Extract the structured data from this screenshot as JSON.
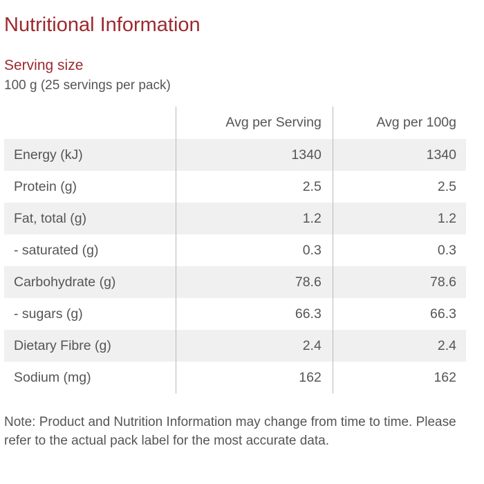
{
  "title": "Nutritional Information",
  "serving": {
    "heading": "Serving size",
    "value": "100 g (25 servings per pack)"
  },
  "table": {
    "headers": [
      "",
      "Avg per Serving",
      "Avg per 100g"
    ],
    "rows": [
      {
        "nutrient": "Energy (kJ)",
        "per_serving": "1340",
        "per_100g": "1340"
      },
      {
        "nutrient": "Protein (g)",
        "per_serving": "2.5",
        "per_100g": "2.5"
      },
      {
        "nutrient": "Fat, total (g)",
        "per_serving": "1.2",
        "per_100g": "1.2"
      },
      {
        "nutrient": "- saturated (g)",
        "per_serving": "0.3",
        "per_100g": "0.3"
      },
      {
        "nutrient": "Carbohydrate (g)",
        "per_serving": "78.6",
        "per_100g": "78.6"
      },
      {
        "nutrient": "- sugars (g)",
        "per_serving": "66.3",
        "per_100g": "66.3"
      },
      {
        "nutrient": "Dietary Fibre (g)",
        "per_serving": "2.4",
        "per_100g": "2.4"
      },
      {
        "nutrient": "Sodium (mg)",
        "per_serving": "162",
        "per_100g": "162"
      }
    ]
  },
  "note": "Note: Product and Nutrition Information may change from time to time. Please refer to the actual pack label for the most accurate data.",
  "colors": {
    "heading": "#9b2a2f",
    "text": "#555555",
    "stripe": "#f0f0f0",
    "divider": "#b8b8b8"
  }
}
